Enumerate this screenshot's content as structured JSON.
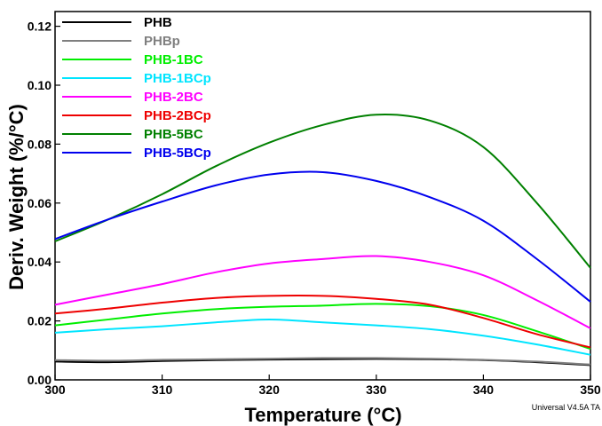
{
  "chart_data": {
    "type": "line",
    "xlabel": "Temperature (°C)",
    "ylabel": "Deriv. Weight (%/°C)",
    "xlim": [
      300,
      350
    ],
    "ylim": [
      0,
      0.125
    ],
    "xticks": [
      "300",
      "310",
      "320",
      "330",
      "340",
      "350"
    ],
    "yticks": [
      "0.00",
      "0.02",
      "0.04",
      "0.06",
      "0.08",
      "0.10",
      "0.12"
    ],
    "grid": false,
    "legend_position": "top-left",
    "footer": "Universal V4.5A TA",
    "x": [
      300,
      305,
      310,
      315,
      320,
      325,
      330,
      335,
      340,
      345,
      350
    ],
    "series": [
      {
        "name": "PHB",
        "color": "#000000",
        "values": [
          0.0062,
          0.006,
          0.0064,
          0.0067,
          0.0069,
          0.007,
          0.0071,
          0.007,
          0.0067,
          0.006,
          0.005
        ]
      },
      {
        "name": "PHBp",
        "color": "#7f7f7f",
        "values": [
          0.0067,
          0.0065,
          0.0068,
          0.007,
          0.0072,
          0.0074,
          0.0074,
          0.0072,
          0.0068,
          0.0062,
          0.0052
        ]
      },
      {
        "name": "PHB-1BC",
        "color": "#00ee00",
        "values": [
          0.0185,
          0.0205,
          0.0225,
          0.024,
          0.0248,
          0.0252,
          0.0258,
          0.025,
          0.022,
          0.0165,
          0.0105
        ]
      },
      {
        "name": "PHB-1BCp",
        "color": "#00e5ff",
        "values": [
          0.016,
          0.0172,
          0.0182,
          0.0195,
          0.0205,
          0.0195,
          0.0185,
          0.0172,
          0.015,
          0.012,
          0.0085
        ]
      },
      {
        "name": "PHB-2BC",
        "color": "#ff00ff",
        "values": [
          0.0255,
          0.029,
          0.0325,
          0.0365,
          0.0395,
          0.041,
          0.042,
          0.04,
          0.0355,
          0.027,
          0.0175
        ]
      },
      {
        "name": "PHB-2BCp",
        "color": "#ee0000",
        "values": [
          0.0225,
          0.0242,
          0.0262,
          0.0278,
          0.0285,
          0.0285,
          0.0275,
          0.0255,
          0.021,
          0.0155,
          0.011
        ]
      },
      {
        "name": "PHB-5BC",
        "color": "#008000",
        "values": [
          0.047,
          0.0545,
          0.063,
          0.0725,
          0.0805,
          0.0865,
          0.09,
          0.088,
          0.079,
          0.06,
          0.038
        ]
      },
      {
        "name": "PHB-5BCp",
        "color": "#0000ee",
        "values": [
          0.0478,
          0.0545,
          0.0605,
          0.066,
          0.0697,
          0.0705,
          0.0675,
          0.062,
          0.054,
          0.041,
          0.0265
        ]
      }
    ]
  }
}
